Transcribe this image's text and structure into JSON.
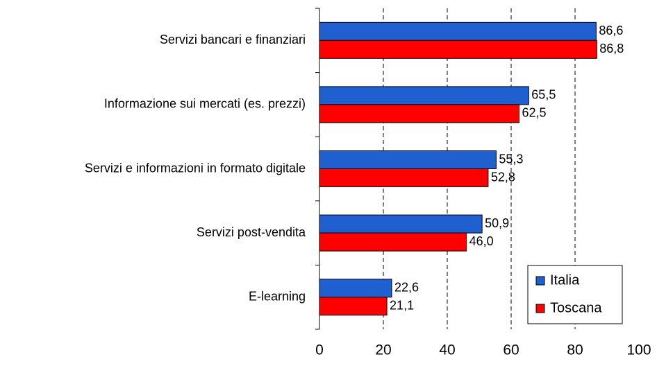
{
  "chart_data": {
    "type": "bar",
    "orientation": "horizontal",
    "categories": [
      "Servizi bancari e finanziari",
      "Informazione sui mercati (es. prezzi)",
      "Servizi e informazioni in formato digitale",
      "Servizi post-vendita",
      "E-learning"
    ],
    "series": [
      {
        "name": "Italia",
        "color": "#1f5fd0",
        "values": [
          86.6,
          65.5,
          55.3,
          50.9,
          22.6
        ],
        "value_labels": [
          "86,6",
          "65,5",
          "55,3",
          "50,9",
          "22,6"
        ]
      },
      {
        "name": "Toscana",
        "color": "#ff0000",
        "values": [
          86.8,
          62.5,
          52.8,
          46.0,
          21.1
        ],
        "value_labels": [
          "86,8",
          "62,5",
          "52,8",
          "46,0",
          "21,1"
        ]
      }
    ],
    "xlim": [
      0,
      100
    ],
    "xticks": [
      0,
      20,
      40,
      60,
      80,
      100
    ],
    "grid": true,
    "legend": "lower right"
  }
}
